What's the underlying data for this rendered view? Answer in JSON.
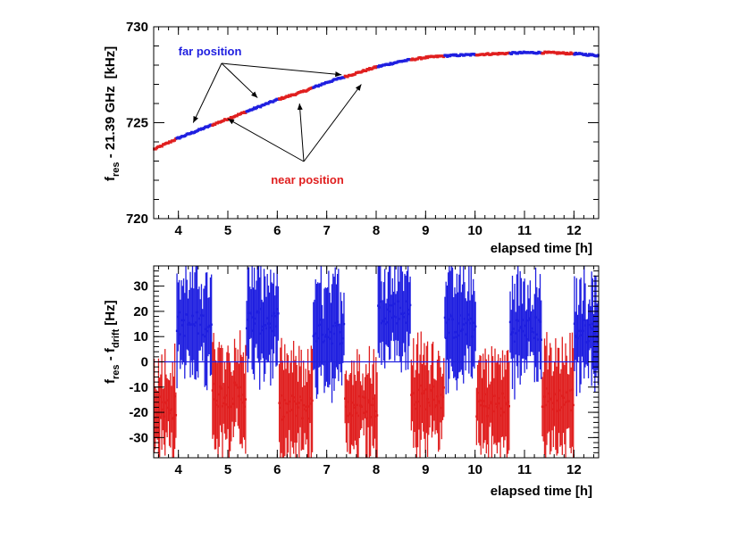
{
  "chart_data": [
    {
      "type": "scatter",
      "panel": "top",
      "xlabel": "elapsed time",
      "xunit": "[h]",
      "ylabel_main": "f",
      "ylabel_sub": "res",
      "ylabel_rest": " - 21.39 GHz",
      "ylabel_unit": "[kHz]",
      "xlim": [
        3.5,
        12.5
      ],
      "ylim": [
        720,
        730
      ],
      "x_ticks": [
        4,
        5,
        6,
        7,
        8,
        9,
        10,
        11,
        12
      ],
      "y_ticks": [
        720,
        725,
        730
      ],
      "grid": false,
      "colors": {
        "far": "#1f1fe0",
        "near": "#e01f1f"
      },
      "annotations": [
        {
          "label": "far position",
          "series": "far",
          "arrow_targets": [
            [
              4.3,
              725.0
            ],
            [
              5.6,
              726.3
            ],
            [
              7.3,
              727.5
            ]
          ]
        },
        {
          "label": "near position",
          "series": "near",
          "arrow_targets": [
            [
              5.0,
              725.2
            ],
            [
              6.45,
              726.0
            ],
            [
              7.7,
              727.0
            ]
          ]
        }
      ],
      "segments": [
        {
          "series": "near",
          "x": [
            3.5,
            3.96
          ]
        },
        {
          "series": "far",
          "x": [
            3.96,
            4.68
          ]
        },
        {
          "series": "near",
          "x": [
            4.68,
            5.37
          ]
        },
        {
          "series": "far",
          "x": [
            5.37,
            6.03
          ]
        },
        {
          "series": "near",
          "x": [
            6.03,
            6.72
          ]
        },
        {
          "series": "far",
          "x": [
            6.72,
            7.36
          ]
        },
        {
          "series": "near",
          "x": [
            7.36,
            8.03
          ]
        },
        {
          "series": "far",
          "x": [
            8.03,
            8.7
          ]
        },
        {
          "series": "near",
          "x": [
            8.7,
            9.38
          ]
        },
        {
          "series": "far",
          "x": [
            9.38,
            10.02
          ]
        },
        {
          "series": "near",
          "x": [
            10.02,
            10.7
          ]
        },
        {
          "series": "far",
          "x": [
            10.7,
            11.35
          ]
        },
        {
          "series": "near",
          "x": [
            11.35,
            12.0
          ]
        },
        {
          "series": "far",
          "x": [
            12.0,
            12.5
          ]
        }
      ],
      "drift_curve": {
        "x": [
          3.5,
          4.0,
          4.5,
          5.0,
          5.5,
          6.0,
          6.5,
          7.0,
          7.5,
          8.0,
          8.5,
          9.0,
          9.5,
          10.0,
          10.5,
          11.0,
          11.5,
          12.0,
          12.5
        ],
        "y": [
          723.6,
          724.2,
          724.7,
          725.2,
          725.7,
          726.2,
          726.6,
          727.1,
          727.5,
          727.9,
          728.2,
          728.4,
          728.5,
          728.55,
          728.6,
          728.65,
          728.65,
          728.6,
          728.5
        ]
      }
    },
    {
      "type": "scatter",
      "panel": "bottom",
      "xlabel": "elapsed time",
      "xunit": "[h]",
      "ylabel_main": "f",
      "ylabel_sub1": "res",
      "ylabel_mid": " - f",
      "ylabel_sub2": "drift",
      "ylabel_unit": "[Hz]",
      "xlim": [
        3.5,
        12.5
      ],
      "ylim": [
        -38,
        38
      ],
      "x_ticks": [
        4,
        5,
        6,
        7,
        8,
        9,
        10,
        11,
        12
      ],
      "y_ticks": [
        -30,
        -20,
        -10,
        0,
        10,
        20,
        30
      ],
      "zero_line": 0,
      "grid": false,
      "colors": {
        "far": "#1f1fe0",
        "near": "#e01f1f"
      },
      "segments": [
        {
          "series": "near",
          "x": [
            3.5,
            3.96
          ],
          "mean": -18
        },
        {
          "series": "far",
          "x": [
            3.96,
            4.68
          ],
          "mean": 15
        },
        {
          "series": "near",
          "x": [
            4.68,
            5.37
          ],
          "mean": -13
        },
        {
          "series": "far",
          "x": [
            5.37,
            6.03
          ],
          "mean": 16
        },
        {
          "series": "near",
          "x": [
            6.03,
            6.72
          ],
          "mean": -18
        },
        {
          "series": "far",
          "x": [
            6.72,
            7.36
          ],
          "mean": 12
        },
        {
          "series": "near",
          "x": [
            7.36,
            8.03
          ],
          "mean": -18
        },
        {
          "series": "far",
          "x": [
            8.03,
            8.7
          ],
          "mean": 20
        },
        {
          "series": "near",
          "x": [
            8.7,
            9.38
          ],
          "mean": -14
        },
        {
          "series": "far",
          "x": [
            9.38,
            10.02
          ],
          "mean": 14
        },
        {
          "series": "near",
          "x": [
            10.02,
            10.7
          ],
          "mean": -17
        },
        {
          "series": "far",
          "x": [
            10.7,
            11.35
          ],
          "mean": 13
        },
        {
          "series": "near",
          "x": [
            11.35,
            12.0
          ],
          "mean": -15
        },
        {
          "series": "far",
          "x": [
            12.0,
            12.5
          ],
          "mean": 12
        }
      ]
    }
  ]
}
